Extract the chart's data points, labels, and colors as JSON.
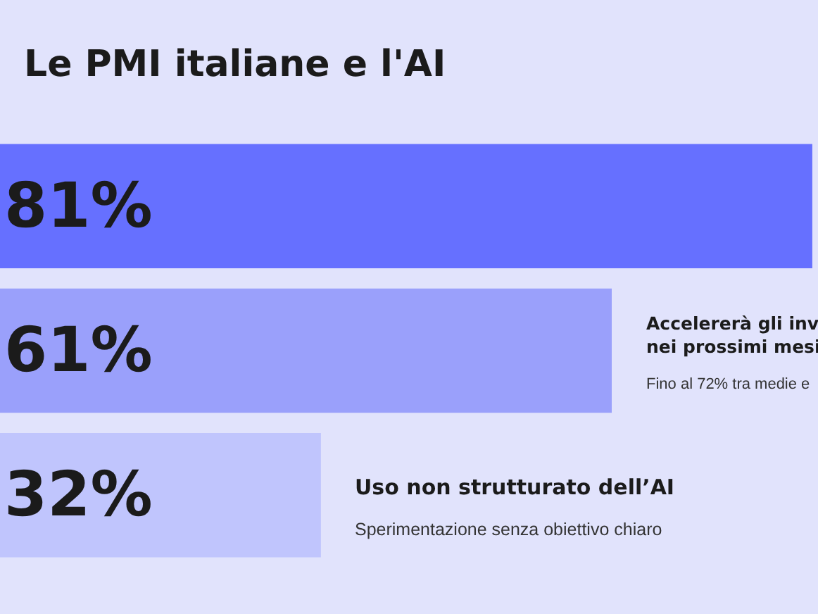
{
  "chart_data": {
    "type": "bar",
    "orientation": "horizontal",
    "title": "Le PMI italiane e l'AI",
    "categories": [
      null,
      null,
      null
    ],
    "values": [
      81,
      61,
      32
    ],
    "colors": [
      "#6670ff",
      "#9aa0fb",
      "#c0c5fd"
    ],
    "value_labels": [
      "81%",
      "61%",
      "32%"
    ],
    "annotations": [
      "Accelererà gli inv\nnei prossimi mesi",
      "Fino al 72% tra medie e",
      "Uso non strutturato dell’AI",
      "Sperimentazione senza obiettivo chiaro"
    ],
    "tick_labels": false
  }
}
